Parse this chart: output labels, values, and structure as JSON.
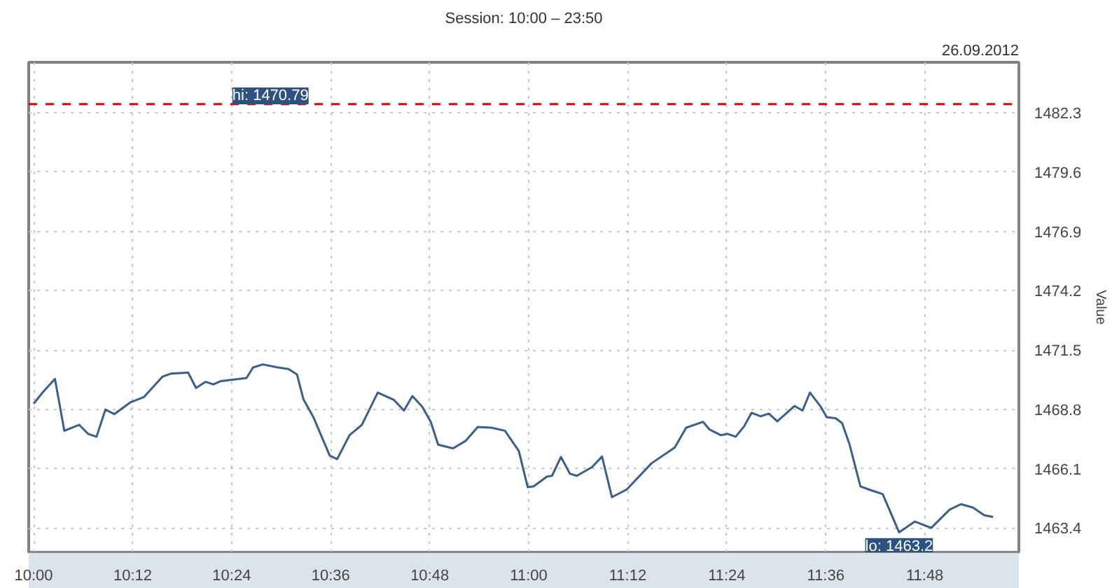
{
  "chart_data": {
    "type": "line",
    "subtitle": "Session: 10:00 – 23:50",
    "ylabel": "Value",
    "annotations": [
      "26.09.2012",
      "hi: 1470.79",
      {
        "text": "lo: 1463.2",
        "x": 11.748,
        "y": 1463.2
      }
    ],
    "xlim": [
      9.99,
      11.99
    ],
    "ylim": [
      1462.3,
      1484.6
    ],
    "xticks": [
      {
        "value": 10,
        "label": "10:00"
      },
      {
        "value": 10.2,
        "label": "10:12"
      },
      {
        "value": 10.4,
        "label": "10:24"
      },
      {
        "value": 10.6,
        "label": "10:36"
      },
      {
        "value": 10.8,
        "label": "10:48"
      },
      {
        "value": 11,
        "label": "11:00"
      },
      {
        "value": 11.2,
        "label": "11:12"
      },
      {
        "value": 11.4,
        "label": "11:24"
      },
      {
        "value": 11.6,
        "label": "11:36"
      },
      {
        "value": 11.8,
        "label": "11:48"
      }
    ],
    "yticks": [
      1463.4,
      1466.1,
      1468.8,
      1471.5,
      1474.2,
      1476.9,
      1479.6,
      1482.3
    ],
    "grid": true,
    "line_style": "solid",
    "marker": "none",
    "ref_lines": [
      {
        "axis": "y",
        "value": 1482.7,
        "color": "#e00000",
        "line_style": "dashed"
      }
    ],
    "series": [
      {
        "color": "#3a5f8a",
        "x": [
          10.0,
          10.018,
          10.043,
          10.062,
          10.092,
          10.11,
          10.127,
          10.145,
          10.163,
          10.195,
          10.223,
          10.26,
          10.277,
          10.312,
          10.328,
          10.347,
          10.363,
          10.378,
          10.43,
          10.443,
          10.463,
          10.492,
          10.515,
          10.532,
          10.545,
          10.565,
          10.598,
          10.613,
          10.638,
          10.663,
          10.695,
          10.728,
          10.748,
          10.765,
          10.785,
          10.802,
          10.817,
          10.847,
          10.872,
          10.897,
          10.925,
          10.952,
          10.98,
          10.998,
          11.01,
          11.037,
          11.047,
          11.065,
          11.083,
          11.097,
          11.128,
          11.148,
          11.168,
          11.198,
          11.248,
          11.295,
          11.318,
          11.352,
          11.365,
          11.388,
          11.402,
          11.418,
          11.435,
          11.45,
          11.468,
          11.485,
          11.502,
          11.537,
          11.553,
          11.568,
          11.59,
          11.602,
          11.62,
          11.633,
          11.648,
          11.67,
          11.692,
          11.715,
          11.748,
          11.78,
          11.813,
          11.85,
          11.873,
          11.897,
          11.92,
          11.938
        ],
        "values": [
          1469.06,
          1469.57,
          1470.19,
          1467.83,
          1468.1,
          1467.69,
          1467.56,
          1468.8,
          1468.59,
          1469.12,
          1469.37,
          1470.29,
          1470.43,
          1470.48,
          1469.78,
          1470.06,
          1469.94,
          1470.09,
          1470.23,
          1470.71,
          1470.85,
          1470.72,
          1470.64,
          1470.39,
          1469.26,
          1468.45,
          1466.7,
          1466.54,
          1467.63,
          1468.1,
          1469.57,
          1469.23,
          1468.75,
          1469.41,
          1468.92,
          1468.24,
          1467.2,
          1467.03,
          1467.36,
          1468.0,
          1467.97,
          1467.83,
          1466.91,
          1465.26,
          1465.3,
          1465.75,
          1465.78,
          1466.64,
          1465.88,
          1465.78,
          1466.18,
          1466.66,
          1464.81,
          1465.16,
          1466.35,
          1467.07,
          1467.97,
          1468.24,
          1467.89,
          1467.63,
          1467.69,
          1467.56,
          1468.03,
          1468.65,
          1468.49,
          1468.61,
          1468.26,
          1468.96,
          1468.75,
          1469.57,
          1468.92,
          1468.45,
          1468.4,
          1468.18,
          1467.21,
          1465.3,
          1465.12,
          1464.95,
          1463.21,
          1463.7,
          1463.41,
          1464.24,
          1464.49,
          1464.34,
          1463.99,
          1463.91
        ]
      }
    ]
  }
}
